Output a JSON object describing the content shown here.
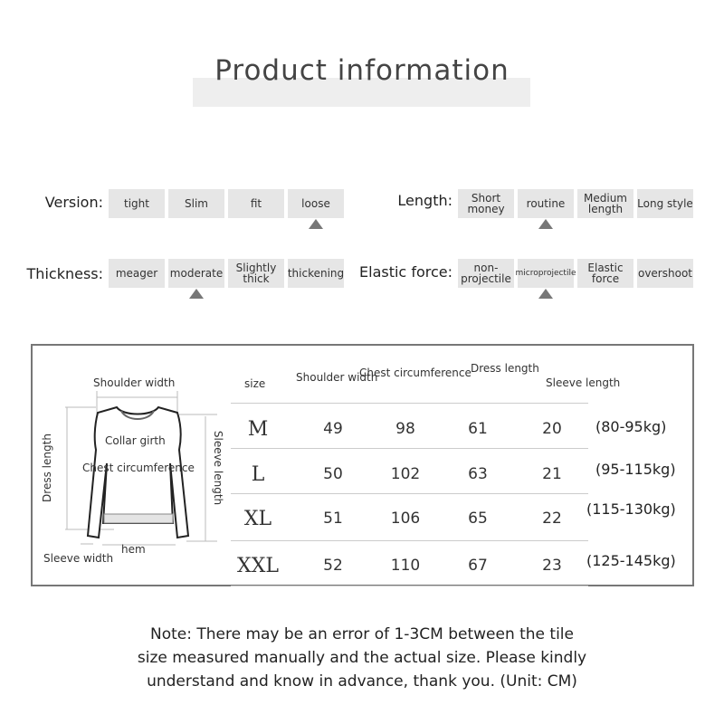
{
  "title": "Product information",
  "attributes": [
    {
      "label": "Version:",
      "options": [
        "tight",
        "Slim",
        "fit",
        "loose"
      ],
      "selected_index": 3
    },
    {
      "label": "Length:",
      "options": [
        "Short money",
        "routine",
        "Medium length",
        "Long style"
      ],
      "selected_index": 1
    },
    {
      "label": "Thickness:",
      "options": [
        "meager",
        "moderate",
        "Slightly thick",
        "thickening"
      ],
      "selected_index": 1
    },
    {
      "label": "Elastic force:",
      "options": [
        "non-projectile",
        "microprojectile",
        "Elastic force",
        "overshoot"
      ],
      "selected_index": 1
    }
  ],
  "diagram": {
    "shoulder_width": "Shoulder width",
    "collar_girth": "Collar girth",
    "chest": "Chest circumference",
    "dress_length": "Dress length",
    "sleeve_length": "Sleeve length",
    "sleeve_width": "Sleeve width",
    "hem": "hem"
  },
  "table": {
    "headers": [
      "size",
      "Shoulder width",
      "Chest circumference",
      "Dress length",
      "Sleeve length"
    ],
    "rows": [
      {
        "size": "M",
        "values": [
          "49",
          "98",
          "61",
          "20"
        ],
        "weight": "(80-95kg)"
      },
      {
        "size": "L",
        "values": [
          "50",
          "102",
          "63",
          "21"
        ],
        "weight": "(95-115kg)"
      },
      {
        "size": "XL",
        "values": [
          "51",
          "106",
          "65",
          "22"
        ],
        "weight": "(115-130kg)"
      },
      {
        "size": "XXL",
        "values": [
          "52",
          "110",
          "67",
          "23"
        ],
        "weight": "(125-145kg)"
      }
    ]
  },
  "note": [
    "Note: There may be an error of 1-3CM between the tile",
    "size measured manually and the actual size. Please kindly",
    "understand and know in advance, thank you. (Unit: CM)"
  ]
}
